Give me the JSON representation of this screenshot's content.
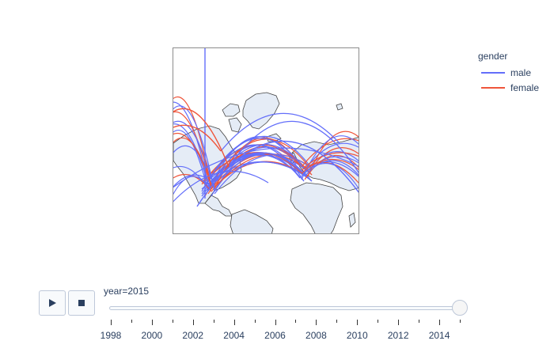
{
  "legend": {
    "title": "gender",
    "items": [
      {
        "label": "male",
        "color": "#636efa"
      },
      {
        "label": "female",
        "color": "#ef553b"
      }
    ]
  },
  "map": {
    "land_color": "#e5ecf6",
    "coast_color": "#444444"
  },
  "animation": {
    "play_icon": "play-icon",
    "stop_icon": "stop-icon",
    "current_label": "year=2015",
    "years": [
      1998,
      1999,
      2000,
      2001,
      2002,
      2003,
      2004,
      2005,
      2006,
      2007,
      2008,
      2009,
      2010,
      2011,
      2012,
      2013,
      2014,
      2015
    ],
    "tick_labels": [
      "1998",
      "2000",
      "2002",
      "2004",
      "2006",
      "2008",
      "2010",
      "2012",
      "2014"
    ],
    "current_year": 2015
  }
}
